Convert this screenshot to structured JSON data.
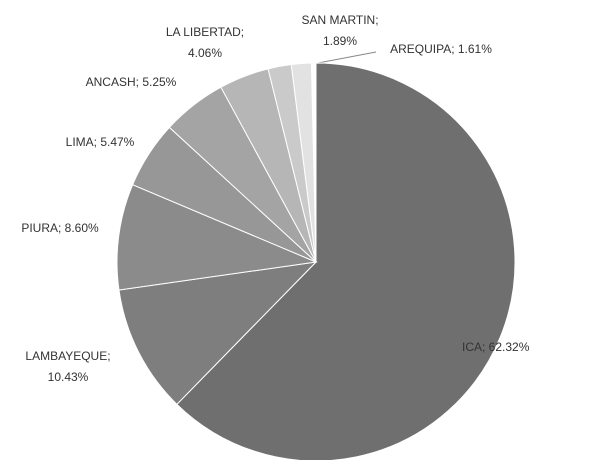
{
  "chart_data": {
    "type": "pie",
    "values": [
      62.32,
      10.43,
      8.6,
      5.47,
      5.25,
      4.06,
      1.89,
      1.61
    ],
    "value_labels": [
      [
        "ICA; 62.32%"
      ],
      [
        "LAMBAYEQUE;",
        "10.43%"
      ],
      [
        "PIURA; 8.60%"
      ],
      [
        "LIMA; 5.47%"
      ],
      [
        "ANCASH; 5.25%"
      ],
      [
        "LA LIBERTAD;",
        "4.06%"
      ],
      [
        "SAN MARTIN;",
        "1.89%"
      ],
      [
        "AREQUIPA; 1.61%"
      ]
    ],
    "colors": [
      "#6f6f6f",
      "#7e7e7e",
      "#8b8b8b",
      "#979797",
      "#a4a4a4",
      "#b6b6b6",
      "#cacaca",
      "#e2e2e2"
    ],
    "start_angle": 0,
    "direction": "clockwise"
  }
}
